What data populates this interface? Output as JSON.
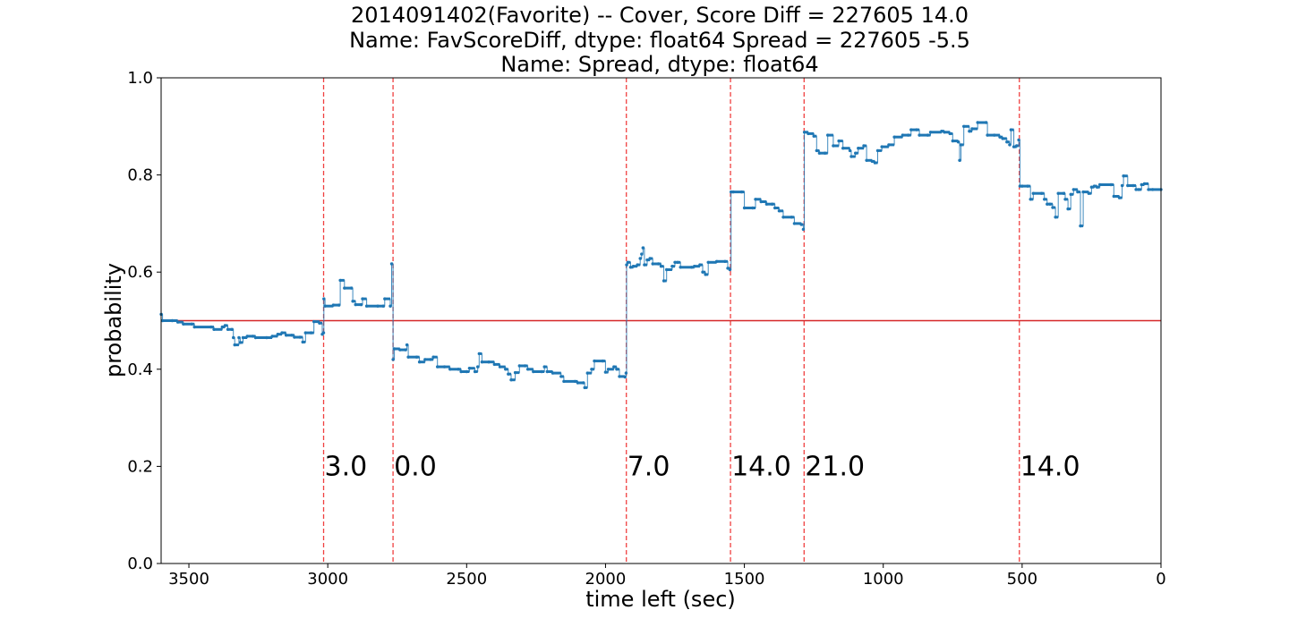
{
  "chart_data": {
    "type": "line",
    "title_lines": [
      "2014091402(Favorite) -- Cover, Score Diff = 227605    14.0",
      "Name: FavScoreDiff, dtype: float64 Spread = 227605   -5.5",
      "Name: Spread, dtype: float64"
    ],
    "xlabel": "time left (sec)",
    "ylabel": "probability",
    "xlim": [
      3600,
      0
    ],
    "ylim": [
      0.0,
      1.0
    ],
    "x_ticks": [
      3500,
      3000,
      2500,
      2000,
      1500,
      1000,
      500,
      0
    ],
    "y_ticks": [
      "0.0",
      "0.2",
      "0.4",
      "0.6",
      "0.8",
      "1.0"
    ],
    "hline": {
      "y": 0.5,
      "color": "#d62728"
    },
    "score_events": [
      {
        "x": 3015,
        "label": "3.0"
      },
      {
        "x": 2765,
        "label": "0.0"
      },
      {
        "x": 1925,
        "label": "7.0"
      },
      {
        "x": 1550,
        "label": "14.0"
      },
      {
        "x": 1285,
        "label": "21.0"
      },
      {
        "x": 510,
        "label": "14.0"
      }
    ],
    "score_label_y": 0.2,
    "series": [
      {
        "color": "#1f77b4",
        "points": [
          [
            3600,
            0.513
          ],
          [
            3595,
            0.5
          ],
          [
            3560,
            0.5
          ],
          [
            3540,
            0.497
          ],
          [
            3520,
            0.493
          ],
          [
            3490,
            0.493
          ],
          [
            3480,
            0.487
          ],
          [
            3420,
            0.487
          ],
          [
            3410,
            0.482
          ],
          [
            3380,
            0.487
          ],
          [
            3370,
            0.49
          ],
          [
            3360,
            0.482
          ],
          [
            3345,
            0.482
          ],
          [
            3340,
            0.465
          ],
          [
            3335,
            0.45
          ],
          [
            3320,
            0.465
          ],
          [
            3315,
            0.455
          ],
          [
            3305,
            0.465
          ],
          [
            3290,
            0.468
          ],
          [
            3270,
            0.468
          ],
          [
            3260,
            0.465
          ],
          [
            3220,
            0.465
          ],
          [
            3200,
            0.468
          ],
          [
            3180,
            0.472
          ],
          [
            3165,
            0.475
          ],
          [
            3150,
            0.47
          ],
          [
            3130,
            0.47
          ],
          [
            3120,
            0.466
          ],
          [
            3100,
            0.466
          ],
          [
            3090,
            0.456
          ],
          [
            3080,
            0.475
          ],
          [
            3060,
            0.475
          ],
          [
            3050,
            0.498
          ],
          [
            3030,
            0.495
          ],
          [
            3020,
            0.472
          ],
          [
            3015,
            0.475
          ],
          [
            3014,
            0.545
          ],
          [
            3010,
            0.53
          ],
          [
            2980,
            0.532
          ],
          [
            2960,
            0.532
          ],
          [
            2955,
            0.583
          ],
          [
            2940,
            0.567
          ],
          [
            2915,
            0.567
          ],
          [
            2910,
            0.54
          ],
          [
            2900,
            0.533
          ],
          [
            2880,
            0.533
          ],
          [
            2875,
            0.545
          ],
          [
            2860,
            0.53
          ],
          [
            2820,
            0.53
          ],
          [
            2800,
            0.53
          ],
          [
            2795,
            0.545
          ],
          [
            2775,
            0.53
          ],
          [
            2770,
            0.617
          ],
          [
            2765,
            0.42
          ],
          [
            2760,
            0.442
          ],
          [
            2740,
            0.44
          ],
          [
            2720,
            0.44
          ],
          [
            2715,
            0.45
          ],
          [
            2710,
            0.425
          ],
          [
            2680,
            0.425
          ],
          [
            2670,
            0.415
          ],
          [
            2650,
            0.42
          ],
          [
            2630,
            0.42
          ],
          [
            2620,
            0.425
          ],
          [
            2605,
            0.405
          ],
          [
            2580,
            0.405
          ],
          [
            2560,
            0.4
          ],
          [
            2530,
            0.4
          ],
          [
            2520,
            0.395
          ],
          [
            2500,
            0.395
          ],
          [
            2490,
            0.402
          ],
          [
            2470,
            0.395
          ],
          [
            2460,
            0.405
          ],
          [
            2455,
            0.432
          ],
          [
            2445,
            0.415
          ],
          [
            2420,
            0.415
          ],
          [
            2400,
            0.41
          ],
          [
            2380,
            0.405
          ],
          [
            2360,
            0.4
          ],
          [
            2350,
            0.39
          ],
          [
            2340,
            0.378
          ],
          [
            2325,
            0.393
          ],
          [
            2310,
            0.407
          ],
          [
            2290,
            0.407
          ],
          [
            2280,
            0.4
          ],
          [
            2260,
            0.395
          ],
          [
            2230,
            0.395
          ],
          [
            2220,
            0.405
          ],
          [
            2210,
            0.395
          ],
          [
            2190,
            0.392
          ],
          [
            2160,
            0.385
          ],
          [
            2150,
            0.375
          ],
          [
            2110,
            0.375
          ],
          [
            2100,
            0.372
          ],
          [
            2080,
            0.372
          ],
          [
            2075,
            0.362
          ],
          [
            2065,
            0.392
          ],
          [
            2050,
            0.4
          ],
          [
            2040,
            0.417
          ],
          [
            2010,
            0.417
          ],
          [
            2000,
            0.394
          ],
          [
            1990,
            0.4
          ],
          [
            1970,
            0.405
          ],
          [
            1960,
            0.4
          ],
          [
            1950,
            0.385
          ],
          [
            1930,
            0.384
          ],
          [
            1926,
            0.392
          ],
          [
            1924,
            0.615
          ],
          [
            1920,
            0.62
          ],
          [
            1910,
            0.61
          ],
          [
            1900,
            0.612
          ],
          [
            1885,
            0.615
          ],
          [
            1875,
            0.628
          ],
          [
            1870,
            0.637
          ],
          [
            1865,
            0.65
          ],
          [
            1860,
            0.615
          ],
          [
            1850,
            0.625
          ],
          [
            1840,
            0.628
          ],
          [
            1830,
            0.617
          ],
          [
            1810,
            0.617
          ],
          [
            1800,
            0.612
          ],
          [
            1790,
            0.582
          ],
          [
            1780,
            0.605
          ],
          [
            1760,
            0.612
          ],
          [
            1750,
            0.62
          ],
          [
            1740,
            0.62
          ],
          [
            1730,
            0.61
          ],
          [
            1690,
            0.61
          ],
          [
            1680,
            0.612
          ],
          [
            1660,
            0.615
          ],
          [
            1650,
            0.6
          ],
          [
            1640,
            0.595
          ],
          [
            1630,
            0.62
          ],
          [
            1600,
            0.622
          ],
          [
            1570,
            0.622
          ],
          [
            1560,
            0.608
          ],
          [
            1552,
            0.605
          ],
          [
            1548,
            0.765
          ],
          [
            1540,
            0.765
          ],
          [
            1510,
            0.765
          ],
          [
            1500,
            0.732
          ],
          [
            1470,
            0.732
          ],
          [
            1460,
            0.75
          ],
          [
            1440,
            0.745
          ],
          [
            1420,
            0.74
          ],
          [
            1400,
            0.74
          ],
          [
            1390,
            0.732
          ],
          [
            1375,
            0.726
          ],
          [
            1360,
            0.713
          ],
          [
            1330,
            0.713
          ],
          [
            1320,
            0.7
          ],
          [
            1295,
            0.698
          ],
          [
            1288,
            0.688
          ],
          [
            1284,
            0.888
          ],
          [
            1270,
            0.885
          ],
          [
            1250,
            0.88
          ],
          [
            1240,
            0.85
          ],
          [
            1230,
            0.845
          ],
          [
            1210,
            0.845
          ],
          [
            1200,
            0.882
          ],
          [
            1180,
            0.86
          ],
          [
            1160,
            0.87
          ],
          [
            1145,
            0.855
          ],
          [
            1120,
            0.85
          ],
          [
            1115,
            0.838
          ],
          [
            1100,
            0.845
          ],
          [
            1090,
            0.855
          ],
          [
            1070,
            0.86
          ],
          [
            1060,
            0.83
          ],
          [
            1040,
            0.828
          ],
          [
            1030,
            0.825
          ],
          [
            1020,
            0.85
          ],
          [
            1005,
            0.858
          ],
          [
            980,
            0.862
          ],
          [
            960,
            0.878
          ],
          [
            930,
            0.882
          ],
          [
            910,
            0.882
          ],
          [
            900,
            0.893
          ],
          [
            880,
            0.893
          ],
          [
            870,
            0.882
          ],
          [
            840,
            0.882
          ],
          [
            830,
            0.888
          ],
          [
            790,
            0.89
          ],
          [
            780,
            0.888
          ],
          [
            760,
            0.885
          ],
          [
            750,
            0.87
          ],
          [
            730,
            0.868
          ],
          [
            725,
            0.83
          ],
          [
            720,
            0.862
          ],
          [
            710,
            0.9
          ],
          [
            690,
            0.89
          ],
          [
            680,
            0.895
          ],
          [
            660,
            0.908
          ],
          [
            630,
            0.908
          ],
          [
            625,
            0.882
          ],
          [
            600,
            0.882
          ],
          [
            580,
            0.878
          ],
          [
            570,
            0.875
          ],
          [
            555,
            0.868
          ],
          [
            545,
            0.862
          ],
          [
            540,
            0.893
          ],
          [
            530,
            0.858
          ],
          [
            520,
            0.86
          ],
          [
            512,
            0.872
          ],
          [
            508,
            0.777
          ],
          [
            500,
            0.777
          ],
          [
            480,
            0.777
          ],
          [
            470,
            0.75
          ],
          [
            460,
            0.762
          ],
          [
            430,
            0.762
          ],
          [
            420,
            0.75
          ],
          [
            410,
            0.74
          ],
          [
            400,
            0.74
          ],
          [
            390,
            0.733
          ],
          [
            380,
            0.713
          ],
          [
            370,
            0.762
          ],
          [
            350,
            0.762
          ],
          [
            345,
            0.75
          ],
          [
            335,
            0.73
          ],
          [
            325,
            0.76
          ],
          [
            315,
            0.77
          ],
          [
            300,
            0.765
          ],
          [
            290,
            0.695
          ],
          [
            280,
            0.765
          ],
          [
            260,
            0.762
          ],
          [
            250,
            0.775
          ],
          [
            240,
            0.777
          ],
          [
            230,
            0.775
          ],
          [
            220,
            0.78
          ],
          [
            180,
            0.78
          ],
          [
            170,
            0.756
          ],
          [
            150,
            0.753
          ],
          [
            140,
            0.778
          ],
          [
            135,
            0.798
          ],
          [
            120,
            0.778
          ],
          [
            100,
            0.778
          ],
          [
            90,
            0.77
          ],
          [
            80,
            0.77
          ],
          [
            70,
            0.78
          ],
          [
            60,
            0.782
          ],
          [
            45,
            0.77
          ],
          [
            30,
            0.77
          ],
          [
            0,
            0.77
          ]
        ]
      }
    ]
  }
}
